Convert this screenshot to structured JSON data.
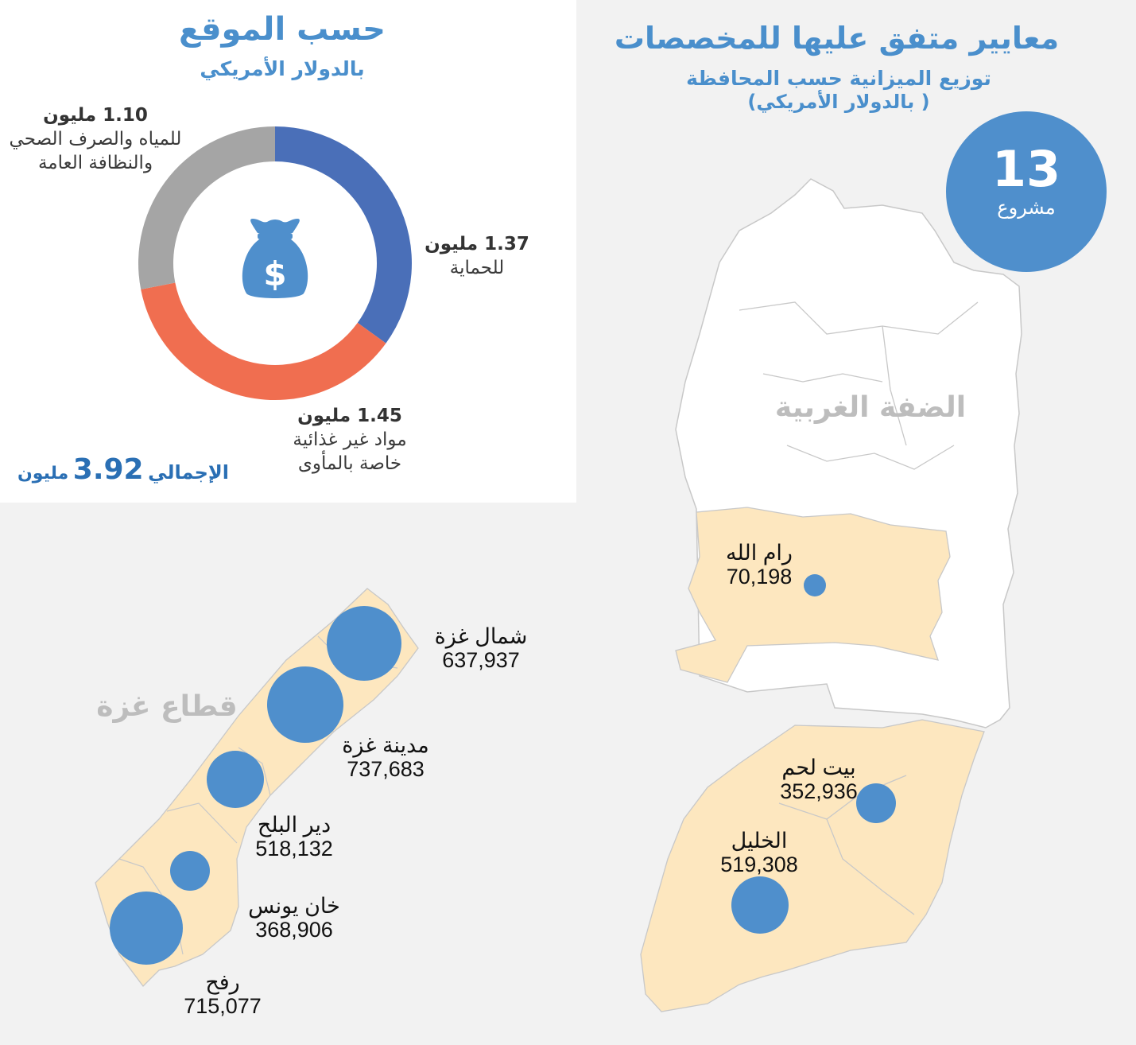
{
  "location_panel": {
    "title": "حسب الموقع",
    "subtitle": "بالدولار الأمريكي",
    "total_label": "الإجمالي",
    "total_value": "3.92",
    "total_unit": "مليون",
    "segments": [
      {
        "amount": "1.37 مليون",
        "label_lines": [
          "للحماية"
        ],
        "value": 1.37,
        "color": "#4a6fb8"
      },
      {
        "amount": "1.45 مليون",
        "label_lines": [
          "مواد غير غذائية",
          "خاصة بالمأوى"
        ],
        "value": 1.45,
        "color": "#f06e50"
      },
      {
        "amount": "1.10 مليون",
        "label_lines": [
          "للمياه والصرف الصحي",
          "والنظافة العامة"
        ],
        "value": 1.1,
        "color": "#a5a5a5"
      }
    ],
    "center_icon": "money-bag-icon"
  },
  "header": {
    "title": "معايير متفق عليها للمخصصات",
    "subtitle": "توزيع الميزانية حسب المحافظة",
    "unit": "( بالدولار الأمريكي)"
  },
  "projects_badge": {
    "number": "13",
    "label": "مشروع"
  },
  "west_bank": {
    "region_label": "الضفة الغربية",
    "governorates": [
      {
        "name": "رام الله",
        "value": "70,198"
      },
      {
        "name": "بيت لحم",
        "value": "352,936"
      },
      {
        "name": "الخليل",
        "value": "519,308"
      }
    ]
  },
  "gaza": {
    "region_label": "قطاع غزة",
    "governorates": [
      {
        "name": "شمال غزة",
        "value": "637,937"
      },
      {
        "name": "مدينة غزة",
        "value": "737,683"
      },
      {
        "name": "دير البلح",
        "value": "518,132"
      },
      {
        "name": "خان يونس",
        "value": "368,906"
      },
      {
        "name": "رفح",
        "value": "715,077"
      }
    ]
  },
  "colors": {
    "accent": "#4a8fcc",
    "highlight_fill": "#fde7bf",
    "map_fill": "#ffffff",
    "circle": "#4f8fcc"
  }
}
